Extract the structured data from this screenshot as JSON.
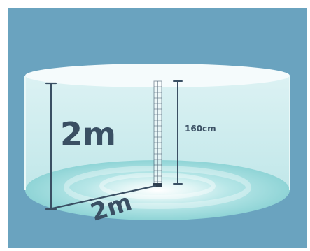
{
  "labels": {
    "height": "2m",
    "diameter": "2m",
    "water_depth": "160cm"
  },
  "colors": {
    "background": "#6aa3bf",
    "tank_top": "#f5fbfc",
    "tank_wall": "#cdeeef",
    "water_floor": "#a4dfe0",
    "dimension_line": "#3a4f63",
    "ruler": "#ffffff"
  }
}
